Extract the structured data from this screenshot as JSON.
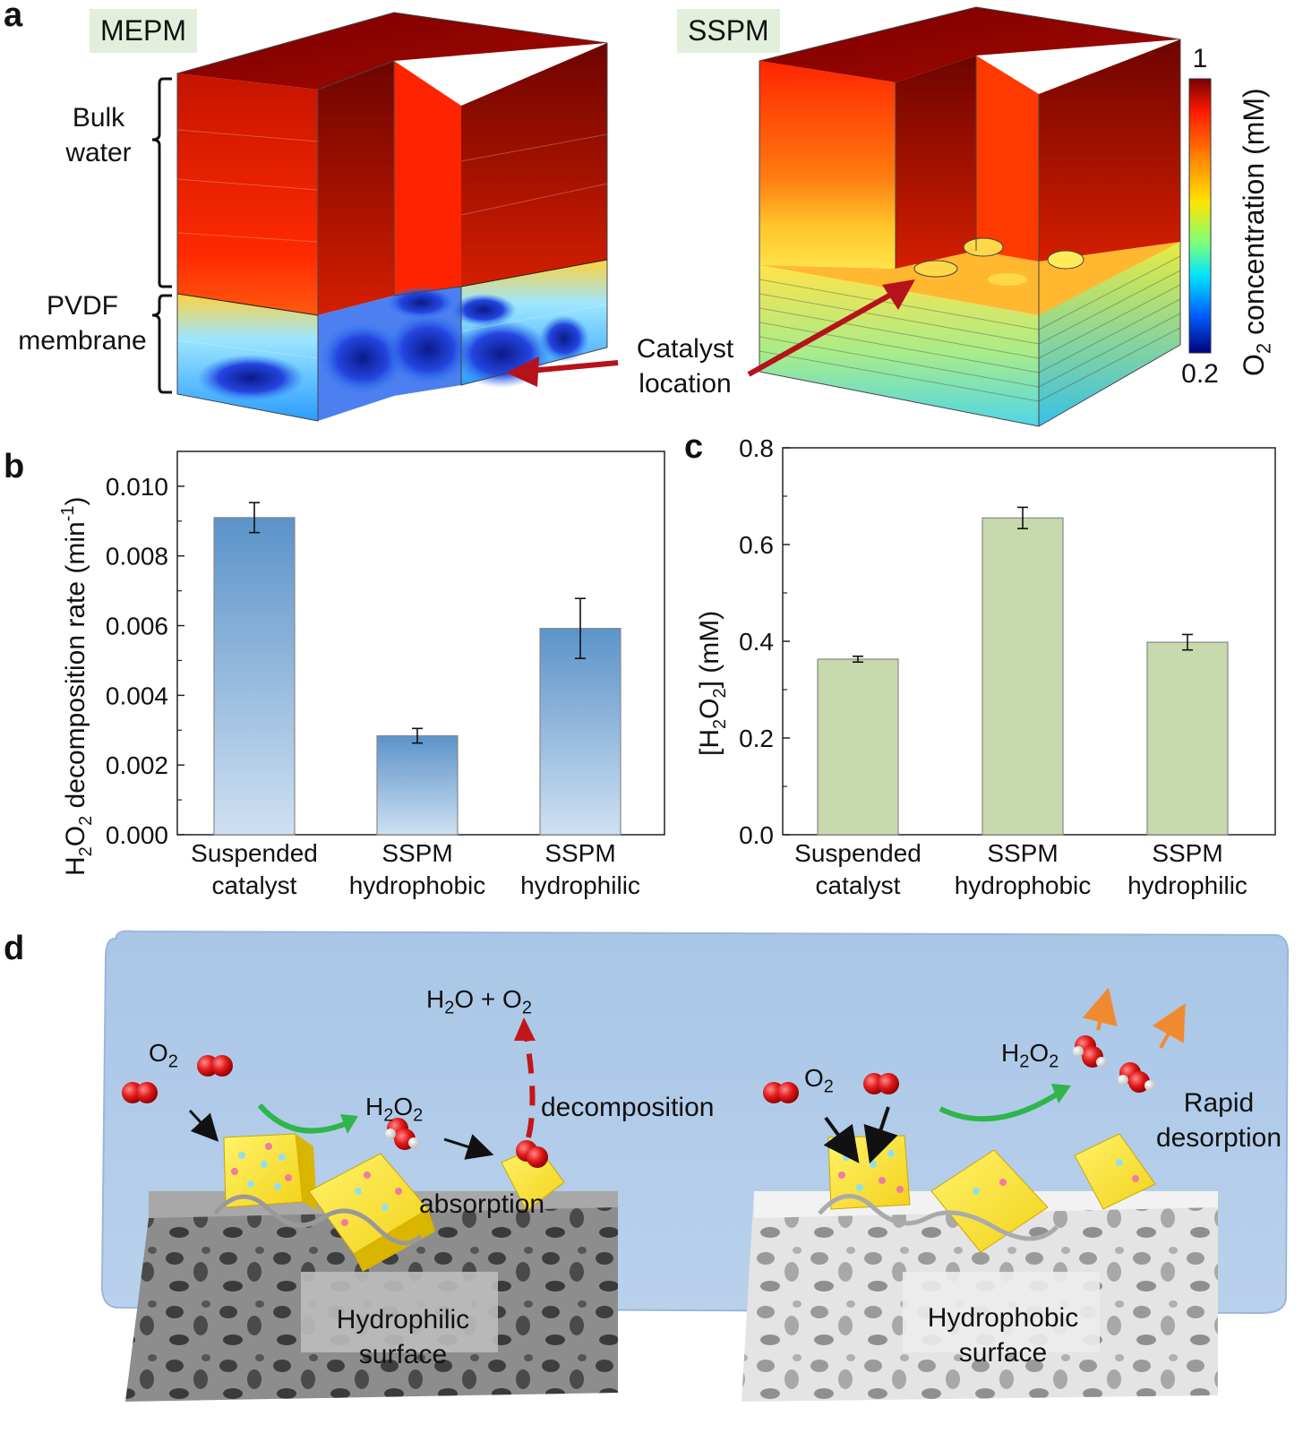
{
  "panel_labels": {
    "a": "a",
    "b": "b",
    "c": "c",
    "d": "d"
  },
  "panel_a": {
    "left_tag": "MEPM",
    "right_tag": "SSPM",
    "bulk_water": [
      "Bulk",
      "water"
    ],
    "pvdf_membrane": [
      "PVDF",
      "membrane"
    ],
    "catalyst_location": [
      "Catalyst",
      "location"
    ],
    "colorbar": {
      "max_label": "1",
      "min_label": "0.2",
      "title_main": "O",
      "title_sub": "2",
      "title_rest": " concentration (mM)"
    }
  },
  "chart_data": [
    {
      "type": "bar",
      "panel": "b",
      "categories": [
        [
          "Suspended",
          "catalyst"
        ],
        [
          "SSPM",
          "hydrophobic"
        ],
        [
          "SSPM",
          "hydrophilic"
        ]
      ],
      "values": [
        0.0091,
        0.00284,
        0.00592
      ],
      "errors": [
        0.00043,
        0.00021,
        0.00086
      ],
      "ylabel": "H2O2 decomposition rate (min-1)",
      "ylim": [
        0,
        0.011
      ],
      "yticks": [
        "0.000",
        "0.002",
        "0.004",
        "0.006",
        "0.008",
        "0.010"
      ],
      "ytick_values": [
        0,
        0.002,
        0.004,
        0.006,
        0.008,
        0.01
      ],
      "bar_color": "#5b93c9"
    },
    {
      "type": "bar",
      "panel": "c",
      "categories": [
        [
          "Suspended",
          "catalyst"
        ],
        [
          "SSPM",
          "hydrophobic"
        ],
        [
          "SSPM",
          "hydrophilic"
        ]
      ],
      "values": [
        0.363,
        0.655,
        0.398
      ],
      "errors": [
        0.006,
        0.022,
        0.016
      ],
      "ylabel": "[H2O2] (mM)",
      "ylim": [
        0,
        0.8
      ],
      "yticks": [
        "0.0",
        "0.2",
        "0.4",
        "0.6",
        "0.8"
      ],
      "ytick_values": [
        0,
        0.2,
        0.4,
        0.6,
        0.8
      ],
      "bar_color": "#c8d9ad"
    }
  ],
  "panel_d": {
    "o2_left": {
      "main": "O",
      "sub": "2"
    },
    "h2o2_left": {
      "a": "H",
      "b": "2",
      "c": "O",
      "d": "2"
    },
    "products": {
      "a": "H",
      "b": "2",
      "c": "O + O",
      "d": "2"
    },
    "decomposition": "decomposition",
    "absorption": "absorption",
    "hydrophilic_surface": [
      "Hydrophilic",
      "surface"
    ],
    "o2_right": {
      "main": "O",
      "sub": "2"
    },
    "h2o2_right": {
      "a": "H",
      "b": "2",
      "c": "O",
      "d": "2"
    },
    "rapid_desorption": [
      "Rapid",
      "desorption"
    ],
    "hydrophobic_surface": [
      "Hydrophobic",
      "surface"
    ]
  }
}
